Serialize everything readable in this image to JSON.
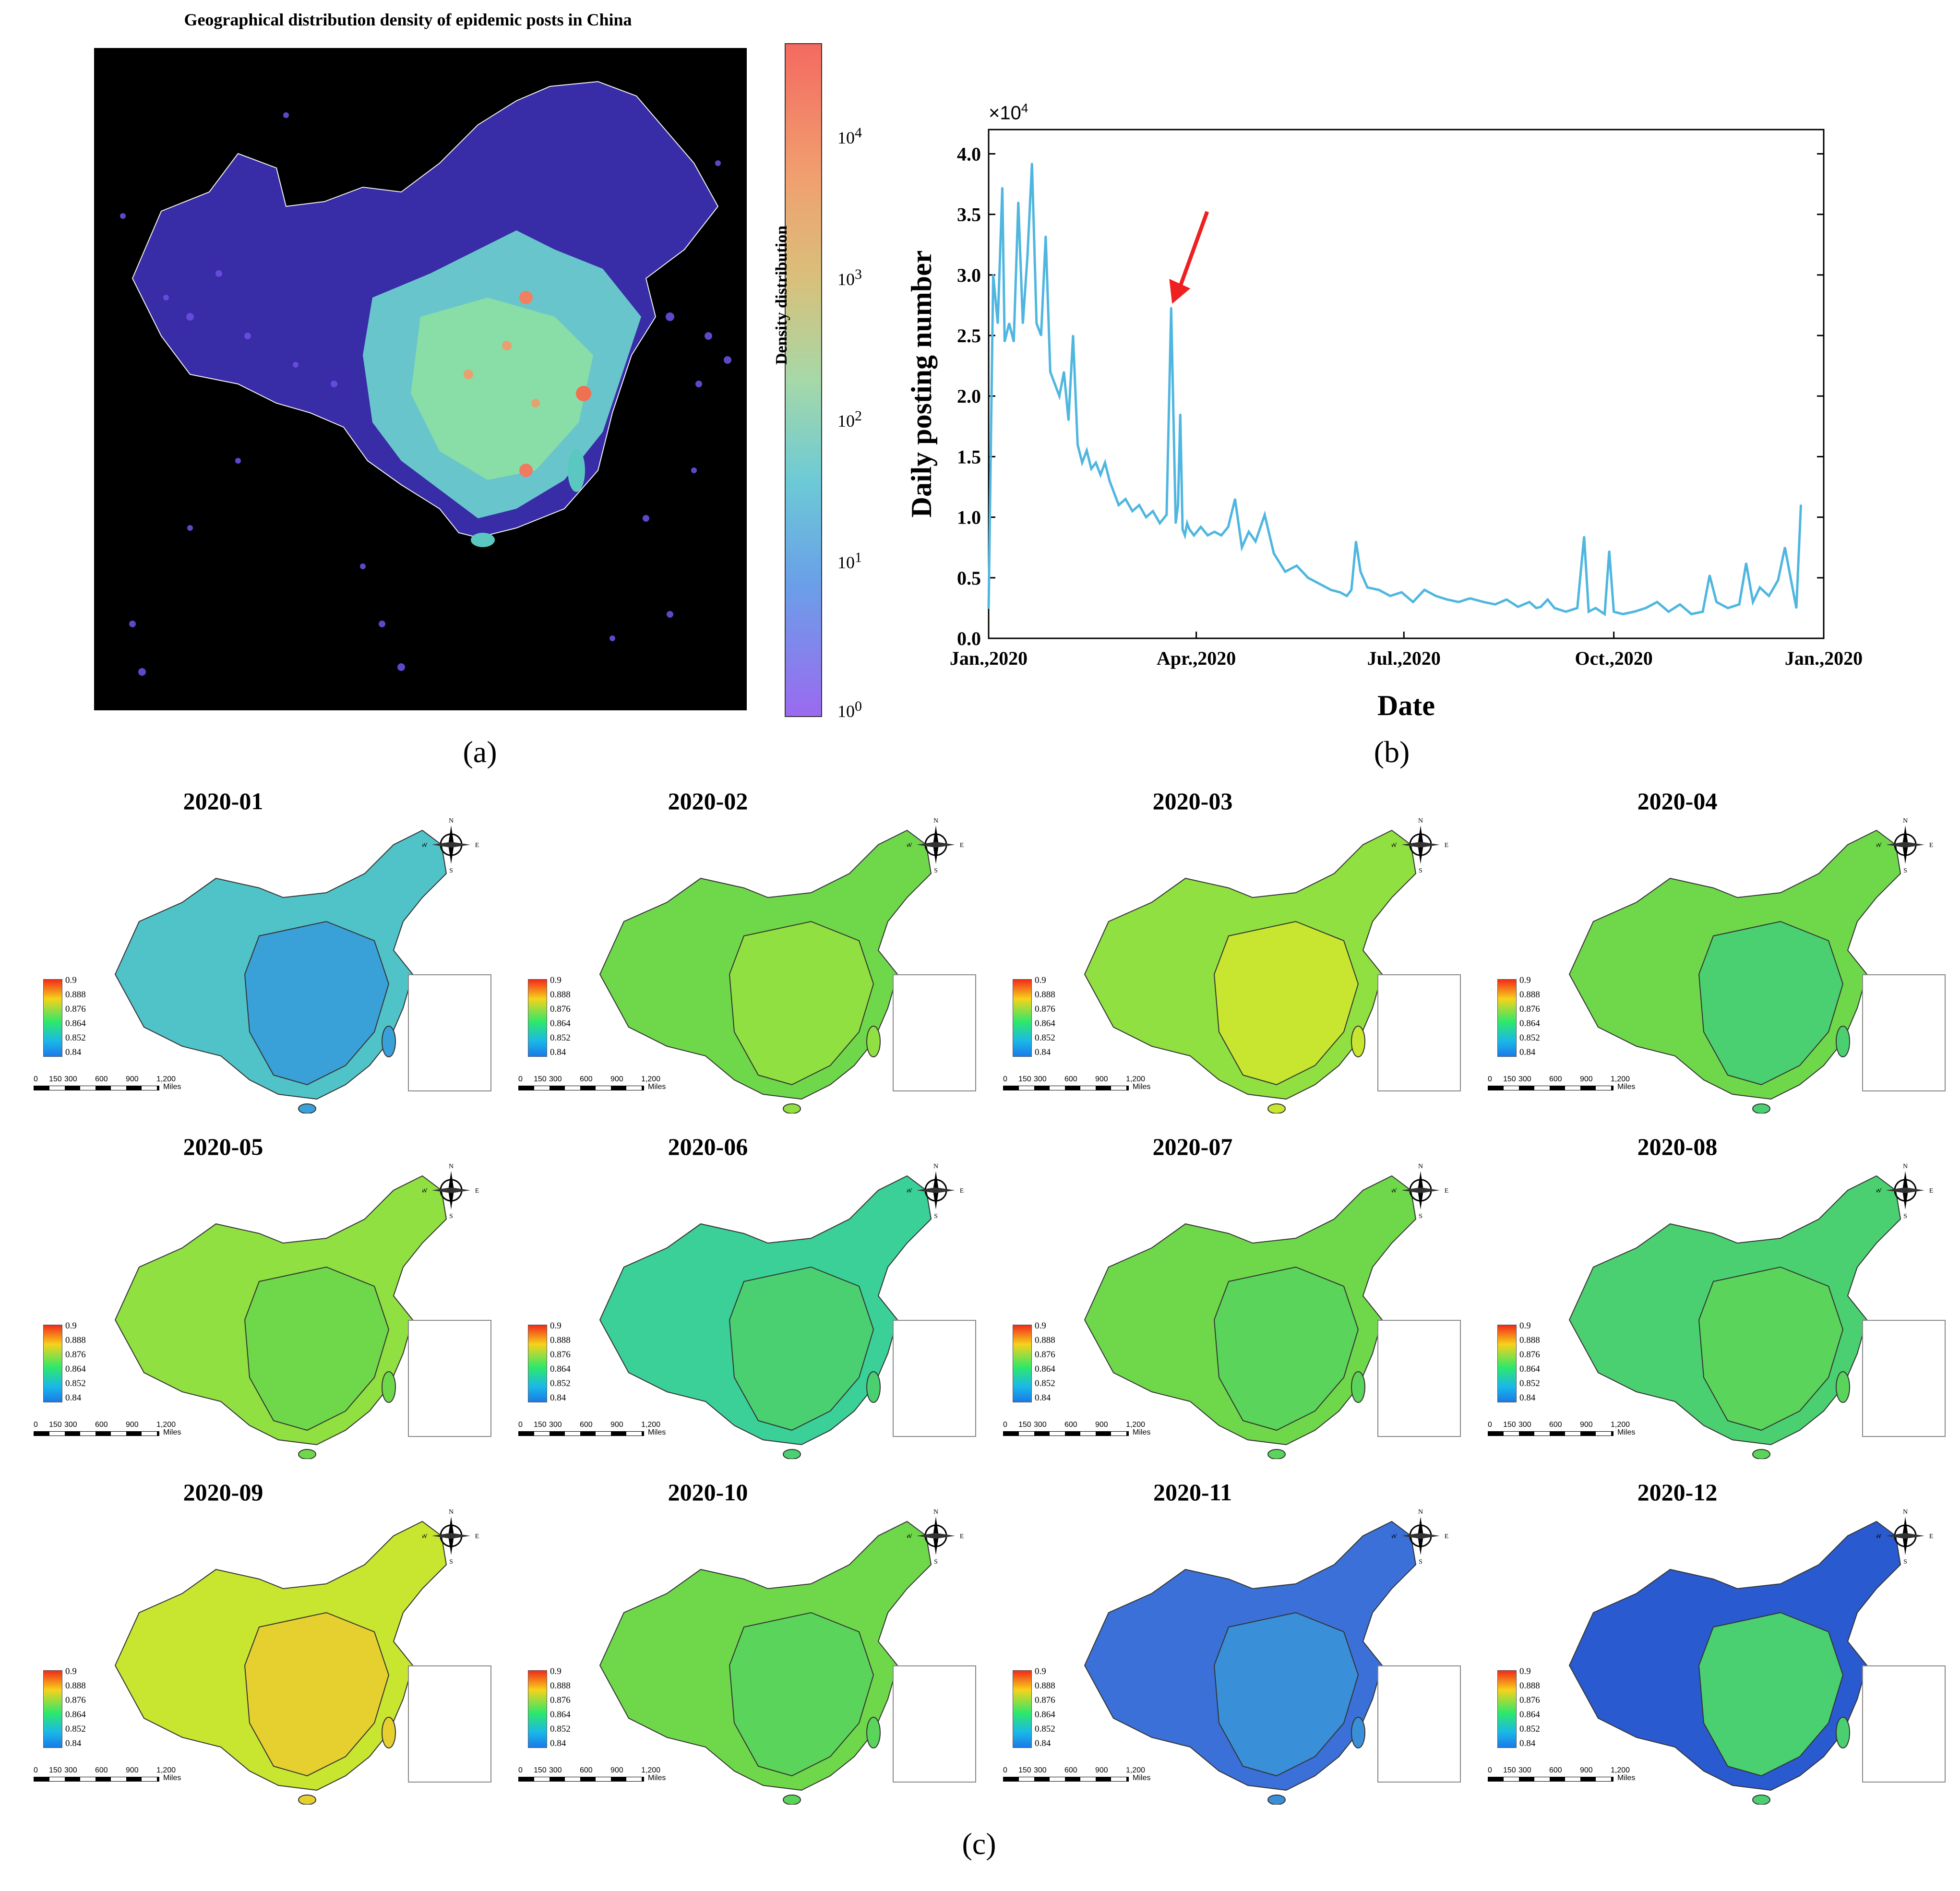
{
  "panel_a": {
    "title": "Geographical distribution density of epidemic posts in China",
    "colorbar_label": "Density distribution",
    "colorbar_ticks": [
      "10^0",
      "10^1",
      "10^2",
      "10^3",
      "10^4"
    ],
    "caption": "(a)"
  },
  "panel_b": {
    "caption": "(b)",
    "multiplier": "×10",
    "multiplier_exp": "4"
  },
  "panel_c": {
    "caption": "(c)",
    "maps": [
      {
        "month": "2020-01",
        "tone": "#4fc3c8",
        "east": "#3aa0d8"
      },
      {
        "month": "2020-02",
        "tone": "#6fd84a",
        "east": "#8fe040"
      },
      {
        "month": "2020-03",
        "tone": "#8fe040",
        "east": "#c8e630"
      },
      {
        "month": "2020-04",
        "tone": "#6fd84a",
        "east": "#4ad070"
      },
      {
        "month": "2020-05",
        "tone": "#8fe040",
        "east": "#6fd84a"
      },
      {
        "month": "2020-06",
        "tone": "#3ad098",
        "east": "#4ad070"
      },
      {
        "month": "2020-07",
        "tone": "#6fd84a",
        "east": "#5ad45a"
      },
      {
        "month": "2020-08",
        "tone": "#4ad070",
        "east": "#5ad45a"
      },
      {
        "month": "2020-09",
        "tone": "#c8e630",
        "east": "#e6d030"
      },
      {
        "month": "2020-10",
        "tone": "#6fd84a",
        "east": "#5ad45a"
      },
      {
        "month": "2020-11",
        "tone": "#3a70d8",
        "east": "#3a90d8"
      },
      {
        "month": "2020-12",
        "tone": "#2a5ad0",
        "east": "#4ad070"
      }
    ],
    "legend_ticks": [
      "0.9",
      "0.888",
      "0.876",
      "0.864",
      "0.852",
      "0.84"
    ],
    "scale_labels": [
      "0",
      "150",
      "300",
      "600",
      "900",
      "1,200"
    ],
    "scale_unit": "Miles",
    "compass": {
      "n": "N",
      "s": "S",
      "e": "E",
      "w": "W"
    }
  },
  "chart_data": [
    {
      "type": "line",
      "title": "",
      "xlabel": "Date",
      "ylabel": "Daily posting number",
      "y_scale_factor": 10000,
      "ylim": [
        0,
        4.2
      ],
      "yticks": [
        "0.0",
        "0.5",
        "1.0",
        "1.5",
        "2.0",
        "2.5",
        "3.0",
        "3.5",
        "4.0"
      ],
      "xticks": [
        "Jan.,2020",
        "Apr.,2020",
        "Jul.,2020",
        "Oct.,2020",
        "Jan.,2020"
      ],
      "annotation": "red arrow pointing to spike at late March 2020",
      "color": "#4fb6e0",
      "series": [
        {
          "x": [
            "2020-01-01",
            "2020-01-03",
            "2020-01-05",
            "2020-01-07",
            "2020-01-08",
            "2020-01-10",
            "2020-01-12",
            "2020-01-14",
            "2020-01-16",
            "2020-01-18",
            "2020-01-20",
            "2020-01-22",
            "2020-01-24",
            "2020-01-26",
            "2020-01-28",
            "2020-01-30",
            "2020-02-01",
            "2020-02-03",
            "2020-02-05",
            "2020-02-07",
            "2020-02-09",
            "2020-02-11",
            "2020-02-13",
            "2020-02-15",
            "2020-02-17",
            "2020-02-19",
            "2020-02-21",
            "2020-02-23",
            "2020-02-25",
            "2020-02-27",
            "2020-03-01",
            "2020-03-04",
            "2020-03-07",
            "2020-03-10",
            "2020-03-13",
            "2020-03-16",
            "2020-03-19",
            "2020-03-21",
            "2020-03-23",
            "2020-03-24",
            "2020-03-25",
            "2020-03-26",
            "2020-03-27",
            "2020-03-28",
            "2020-03-29",
            "2020-03-31",
            "2020-04-03",
            "2020-04-06",
            "2020-04-09",
            "2020-04-12",
            "2020-04-15",
            "2020-04-18",
            "2020-04-21",
            "2020-04-24",
            "2020-04-27",
            "2020-05-01",
            "2020-05-05",
            "2020-05-10",
            "2020-05-15",
            "2020-05-20",
            "2020-05-25",
            "2020-05-30",
            "2020-06-03",
            "2020-06-06",
            "2020-06-08",
            "2020-06-10",
            "2020-06-12",
            "2020-06-15",
            "2020-06-20",
            "2020-06-25",
            "2020-06-30",
            "2020-07-05",
            "2020-07-10",
            "2020-07-15",
            "2020-07-20",
            "2020-07-25",
            "2020-07-30",
            "2020-08-05",
            "2020-08-10",
            "2020-08-15",
            "2020-08-20",
            "2020-08-25",
            "2020-08-28",
            "2020-08-30",
            "2020-09-02",
            "2020-09-05",
            "2020-09-10",
            "2020-09-15",
            "2020-09-18",
            "2020-09-20",
            "2020-09-23",
            "2020-09-27",
            "2020-09-29",
            "2020-10-01",
            "2020-10-05",
            "2020-10-10",
            "2020-10-15",
            "2020-10-20",
            "2020-10-25",
            "2020-10-30",
            "2020-11-04",
            "2020-11-09",
            "2020-11-12",
            "2020-11-15",
            "2020-11-20",
            "2020-11-25",
            "2020-11-28",
            "2020-12-01",
            "2020-12-04",
            "2020-12-08",
            "2020-12-12",
            "2020-12-15",
            "2020-12-18",
            "2020-12-20",
            "2020-12-22"
          ],
          "values": [
            0.25,
            3.0,
            2.6,
            3.72,
            2.45,
            2.6,
            2.45,
            3.6,
            2.6,
            3.15,
            3.92,
            2.6,
            2.5,
            3.32,
            2.2,
            2.1,
            2.0,
            2.2,
            1.8,
            2.5,
            1.6,
            1.45,
            1.55,
            1.4,
            1.45,
            1.35,
            1.45,
            1.3,
            1.2,
            1.1,
            1.15,
            1.05,
            1.1,
            1.0,
            1.05,
            0.95,
            1.02,
            2.73,
            0.95,
            1.1,
            1.85,
            0.9,
            0.85,
            0.95,
            0.9,
            0.85,
            0.92,
            0.85,
            0.88,
            0.85,
            0.92,
            1.15,
            0.75,
            0.88,
            0.8,
            1.02,
            0.7,
            0.55,
            0.6,
            0.5,
            0.45,
            0.4,
            0.38,
            0.35,
            0.4,
            0.8,
            0.55,
            0.42,
            0.4,
            0.35,
            0.38,
            0.3,
            0.4,
            0.35,
            0.32,
            0.3,
            0.33,
            0.3,
            0.28,
            0.32,
            0.26,
            0.3,
            0.25,
            0.26,
            0.32,
            0.25,
            0.22,
            0.25,
            0.84,
            0.22,
            0.25,
            0.2,
            0.72,
            0.22,
            0.2,
            0.22,
            0.25,
            0.3,
            0.22,
            0.28,
            0.2,
            0.22,
            0.52,
            0.3,
            0.25,
            0.28,
            0.62,
            0.3,
            0.42,
            0.35,
            0.48,
            0.75,
            0.45,
            0.25,
            1.1
          ]
        }
      ]
    }
  ]
}
